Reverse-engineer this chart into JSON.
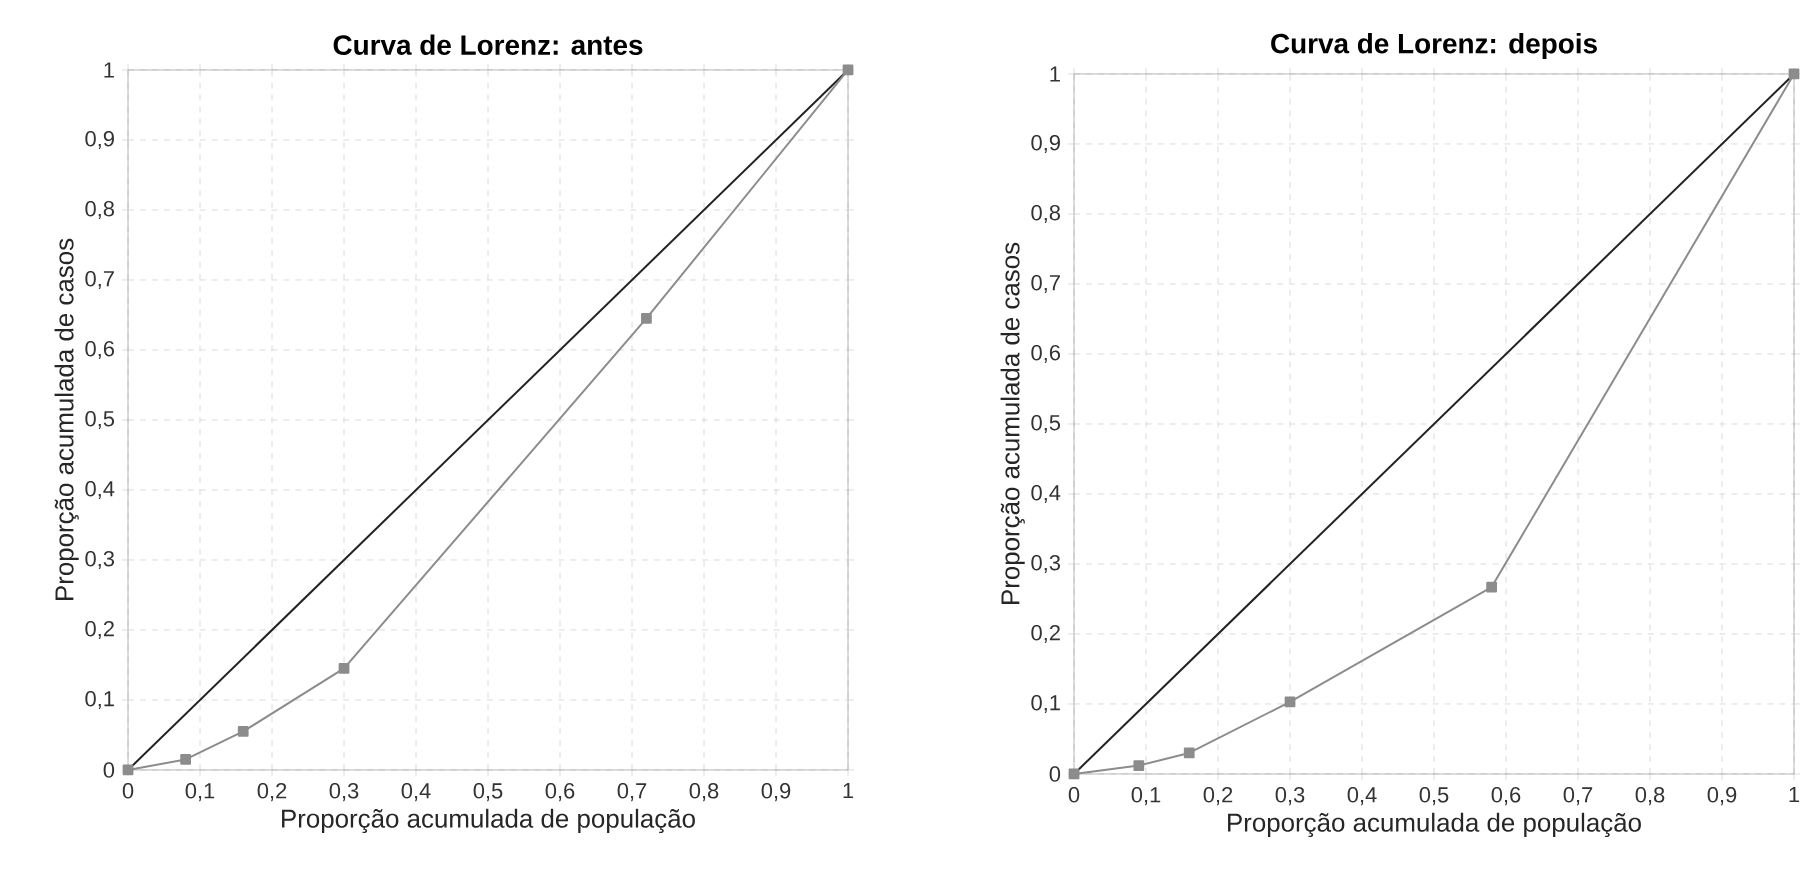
{
  "chart_data": [
    {
      "type": "line",
      "title": "Curva de Lorenz: antes",
      "xlabel": "Proporção acumulada de população",
      "ylabel": "Proporção acumulada de casos",
      "xlim": [
        0,
        1
      ],
      "ylim": [
        0,
        1
      ],
      "xticks": [
        0,
        {
          "value": 0.1,
          "label": "0,1"
        },
        {
          "value": 0.2,
          "label": "0,2"
        },
        {
          "value": 0.3,
          "label": "0,3"
        },
        {
          "value": 0.4,
          "label": "0,4"
        },
        {
          "value": 0.5,
          "label": "0,5"
        },
        {
          "value": 0.6,
          "label": "0,6"
        },
        {
          "value": 0.7,
          "label": "0,7"
        },
        {
          "value": 0.8,
          "label": "0,8"
        },
        {
          "value": 0.9,
          "label": "0,9"
        },
        1
      ],
      "yticks": [
        0,
        {
          "value": 0.1,
          "label": "0,1"
        },
        {
          "value": 0.2,
          "label": "0,2"
        },
        {
          "value": 0.3,
          "label": "0,3"
        },
        {
          "value": 0.4,
          "label": "0,4"
        },
        {
          "value": 0.5,
          "label": "0,5"
        },
        {
          "value": 0.6,
          "label": "0,6"
        },
        {
          "value": 0.7,
          "label": "0,7"
        },
        {
          "value": 0.8,
          "label": "0,8"
        },
        {
          "value": 0.9,
          "label": "0,9"
        },
        1
      ],
      "grid": true,
      "series": [
        {
          "color": "#222222",
          "marker": "none",
          "x": [
            0,
            1
          ],
          "values": [
            0,
            1
          ]
        },
        {
          "color": "#8c8c8c",
          "marker": "square",
          "x": [
            0,
            0.08,
            0.16,
            0.3,
            0.72,
            1
          ],
          "values": [
            0,
            0.015,
            0.055,
            0.145,
            0.645,
            1
          ]
        }
      ]
    },
    {
      "type": "line",
      "title": "Curva de Lorenz: depois",
      "xlabel": "Proporção acumulada de população",
      "ylabel": "Proporção acumulada de casos",
      "xlim": [
        0,
        1
      ],
      "ylim": [
        0,
        1
      ],
      "xticks": [
        0,
        {
          "value": 0.1,
          "label": "0,1"
        },
        {
          "value": 0.2,
          "label": "0,2"
        },
        {
          "value": 0.3,
          "label": "0,3"
        },
        {
          "value": 0.4,
          "label": "0,4"
        },
        {
          "value": 0.5,
          "label": "0,5"
        },
        {
          "value": 0.6,
          "label": "0,6"
        },
        {
          "value": 0.7,
          "label": "0,7"
        },
        {
          "value": 0.8,
          "label": "0,8"
        },
        {
          "value": 0.9,
          "label": "0,9"
        },
        1
      ],
      "yticks": [
        0,
        {
          "value": 0.1,
          "label": "0,1"
        },
        {
          "value": 0.2,
          "label": "0,2"
        },
        {
          "value": 0.3,
          "label": "0,3"
        },
        {
          "value": 0.4,
          "label": "0,4"
        },
        {
          "value": 0.5,
          "label": "0,5"
        },
        {
          "value": 0.6,
          "label": "0,6"
        },
        {
          "value": 0.7,
          "label": "0,7"
        },
        {
          "value": 0.8,
          "label": "0,8"
        },
        {
          "value": 0.9,
          "label": "0,9"
        },
        1
      ],
      "grid": true,
      "series": [
        {
          "color": "#222222",
          "marker": "none",
          "x": [
            0,
            1
          ],
          "values": [
            0,
            1
          ]
        },
        {
          "color": "#8c8c8c",
          "marker": "square",
          "x": [
            0,
            0.09,
            0.16,
            0.3,
            0.58,
            1
          ],
          "values": [
            0,
            0.012,
            0.03,
            0.103,
            0.267,
            1
          ]
        }
      ]
    }
  ]
}
